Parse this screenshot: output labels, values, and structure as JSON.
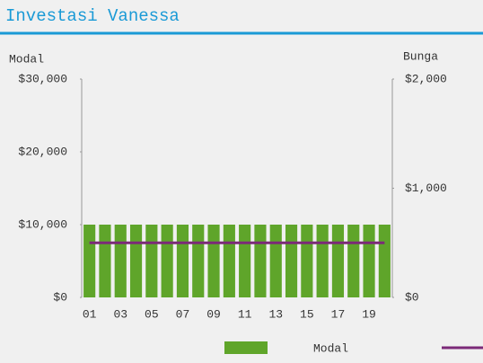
{
  "chart_data": {
    "type": "bar-line",
    "title": "Investasi Vanessa",
    "y_label": "Modal",
    "y2_label": "Bunga",
    "categories": [
      "01",
      null,
      "03",
      null,
      "05",
      null,
      "07",
      null,
      "09",
      null,
      "11",
      null,
      "13",
      null,
      "15",
      null,
      "17",
      null,
      "19",
      null
    ],
    "series": [
      {
        "name": "Modal",
        "type": "bar",
        "color": "#5fa52a",
        "values": [
          10000,
          10000,
          10000,
          10000,
          10000,
          10000,
          10000,
          10000,
          10000,
          10000,
          10000,
          10000,
          10000,
          10000,
          10000,
          10000,
          10000,
          10000,
          10000,
          10000
        ]
      },
      {
        "type": "line",
        "axis": "y2",
        "color": "#7b2a78",
        "values": [
          500,
          500,
          500,
          500,
          500,
          500,
          500,
          500,
          500,
          500,
          500,
          500,
          500,
          500,
          500,
          500,
          500,
          500,
          500,
          500
        ]
      }
    ],
    "ylim": [
      0,
      30000
    ],
    "yticks": [
      {
        "value": 0,
        "label": "$0"
      },
      {
        "value": 10000,
        "label": "$10,000"
      },
      {
        "value": 20000,
        "label": "$20,000"
      },
      {
        "value": 30000,
        "label": "$30,000"
      }
    ],
    "y2lim": [
      0,
      2000
    ],
    "y2ticks": [
      {
        "value": 0,
        "label": "$0"
      },
      {
        "value": 1000,
        "label": "$1,000"
      },
      {
        "value": 2000,
        "label": "$2,000"
      }
    ]
  }
}
